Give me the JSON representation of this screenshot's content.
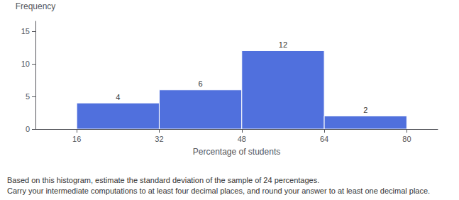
{
  "chart_data": {
    "type": "histogram",
    "bins": [
      16,
      32,
      48,
      64,
      80
    ],
    "values": [
      4,
      6,
      12,
      2
    ],
    "xlabel": "Percentage of students",
    "ylabel": "Frequency",
    "xlim": [
      8,
      86
    ],
    "xticks": [
      16,
      32,
      48,
      64,
      80
    ],
    "ylim": [
      0,
      16.5
    ],
    "yticks": [
      0,
      5,
      10,
      15
    ],
    "data_labels": true,
    "grid": false,
    "annotations": [
      "Based on this histogram, estimate the standard deviation of the sample of 24 percentages.",
      "Carry your intermediate computations to at least four decimal places, and round your answer to at least one decimal place."
    ]
  }
}
